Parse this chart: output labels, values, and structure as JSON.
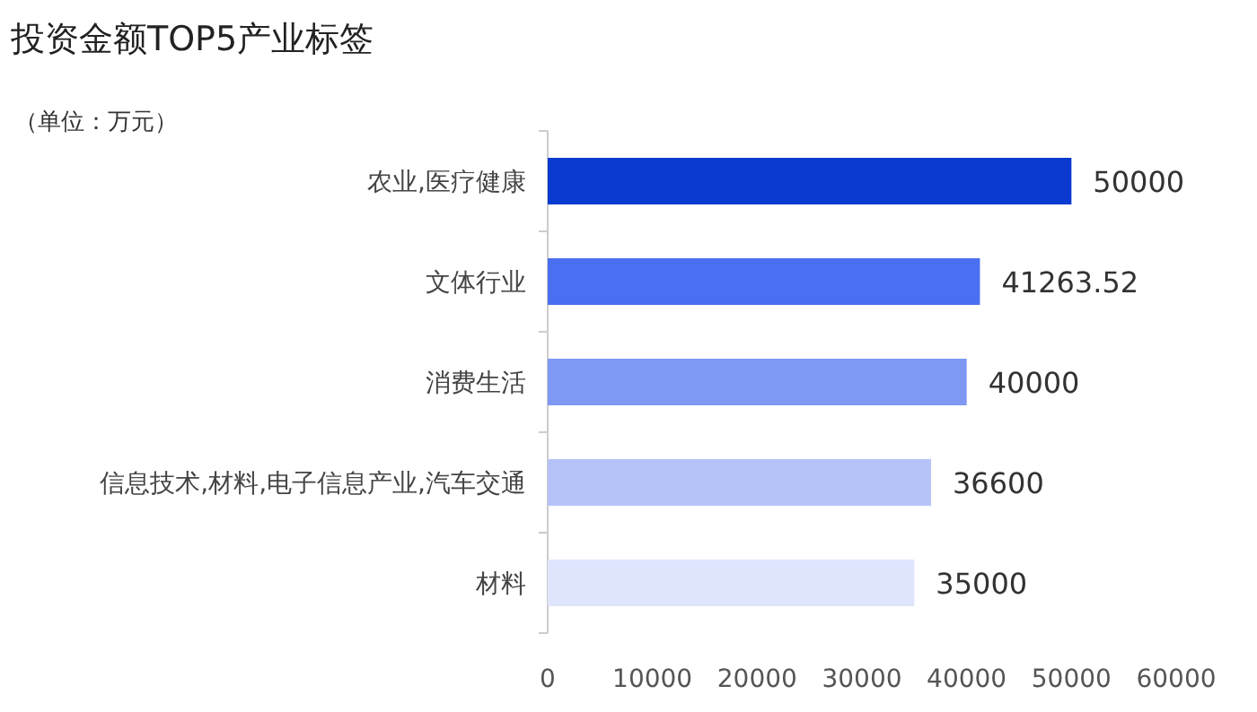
{
  "chart_data": {
    "type": "bar",
    "orientation": "horizontal",
    "title": "投资金额TOP5产业标签",
    "subtitle": "（单位：万元）",
    "categories": [
      "农业,医疗健康",
      "文体行业",
      "消费生活",
      "信息技术,材料,电子信息产业,汽车交通",
      "材料"
    ],
    "values": [
      50000,
      41263.52,
      40000,
      36600,
      35000
    ],
    "colors": [
      "#0a3ad0",
      "#4a6ff0",
      "#7f98f4",
      "#b5c3f8",
      "#dfe5fc"
    ],
    "xlim": [
      0,
      60000
    ],
    "xticks": [
      0,
      10000,
      20000,
      30000,
      40000,
      50000,
      60000
    ],
    "data_labels": true,
    "grid": false
  }
}
